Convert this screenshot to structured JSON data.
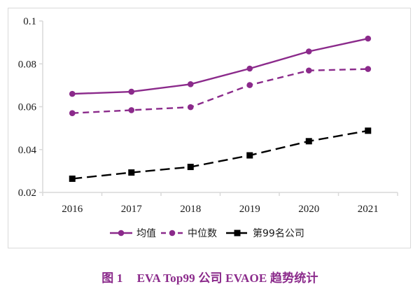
{
  "chart_data": {
    "type": "line",
    "title": "",
    "xlabel": "",
    "ylabel": "",
    "categories": [
      "2016",
      "2017",
      "2018",
      "2019",
      "2020",
      "2021"
    ],
    "ylim": [
      0.02,
      0.1
    ],
    "yticks": [
      0.02,
      0.04,
      0.06,
      0.08,
      0.1
    ],
    "ytick_labels": [
      "0.02",
      "0.04",
      "0.06",
      "0.08",
      "0.1"
    ],
    "grid": false,
    "legend_position": "bottom",
    "series": [
      {
        "name": "均值",
        "values": [
          0.066,
          0.067,
          0.0705,
          0.0778,
          0.0858,
          0.0918
        ],
        "color": "#8b2a8b",
        "line_style": "solid",
        "marker": "circle"
      },
      {
        "name": "中位数",
        "values": [
          0.057,
          0.0584,
          0.0598,
          0.0701,
          0.0769,
          0.0776
        ],
        "color": "#8b2a8b",
        "line_style": "dashed",
        "marker": "circle"
      },
      {
        "name": "第99名公司",
        "values": [
          0.0264,
          0.0293,
          0.0319,
          0.0373,
          0.0439,
          0.0488
        ],
        "color": "#000000",
        "line_style": "dashed",
        "marker": "square"
      }
    ]
  },
  "caption": {
    "figure_number": "图 1",
    "text": "EVA Top99 公司 EVAOE 趋势统计"
  }
}
